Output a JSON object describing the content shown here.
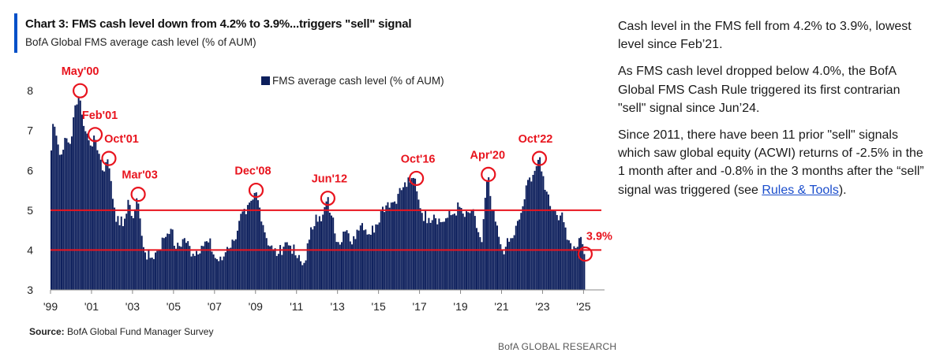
{
  "header": {
    "title": "Chart 3: FMS cash level down from 4.2% to 3.9%...triggers \"sell\" signal",
    "subtitle": "BofA Global FMS average cash level (% of AUM)"
  },
  "footer": {
    "source_label": "Source:",
    "source_text": " BofA Global Fund Manager Survey",
    "brand": "BofA GLOBAL RESEARCH"
  },
  "commentary": {
    "p1": "Cash level in the FMS fell from 4.2% to 3.9%, lowest level since Feb’21.",
    "p2": "As FMS cash level dropped below 4.0%, the BofA Global FMS Cash Rule triggered its first contrarian \"sell\" signal since Jun’24.",
    "p3_before": "Since 2011, there have been 11 prior \"sell\" signals which saw global equity (ACWI) returns of -2.5% in the 1 month after and -0.8% in the 3 months after the “sell” signal was triggered (see ",
    "p3_link": "Rules & Tools",
    "p3_after": ")."
  },
  "colors": {
    "bars": "#0d1f5c",
    "threshold": "#e8141e",
    "annotation": "#e8141e",
    "accent": "#0050c8"
  },
  "chart_data": {
    "type": "bar",
    "series": [
      {
        "name": "FMS average cash level (% of AUM)"
      }
    ],
    "x_start": 1999,
    "x_end": 2025.1,
    "ylim": [
      3,
      8.3
    ],
    "yticks": [
      "3",
      "4",
      "5",
      "6",
      "7",
      "8"
    ],
    "xticks": [
      {
        "label": "'99",
        "year": 1999
      },
      {
        "label": "'01",
        "year": 2001
      },
      {
        "label": "'03",
        "year": 2003
      },
      {
        "label": "'05",
        "year": 2005
      },
      {
        "label": "'07",
        "year": 2007
      },
      {
        "label": "'09",
        "year": 2009
      },
      {
        "label": "'11",
        "year": 2011
      },
      {
        "label": "'13",
        "year": 2013
      },
      {
        "label": "'15",
        "year": 2015
      },
      {
        "label": "'17",
        "year": 2017
      },
      {
        "label": "'19",
        "year": 2019
      },
      {
        "label": "'21",
        "year": 2021
      },
      {
        "label": "'23",
        "year": 2023
      },
      {
        "label": "'25",
        "year": 2025
      }
    ],
    "thresholds": [
      5.0,
      4.0
    ],
    "annotations": [
      {
        "label": "May'00",
        "year": 2000.37,
        "value": 8.0
      },
      {
        "label": "Feb'01",
        "year": 2001.1,
        "value": 6.9
      },
      {
        "label": "Oct'01",
        "year": 2001.77,
        "value": 6.3
      },
      {
        "label": "Mar'03",
        "year": 2003.2,
        "value": 5.4
      },
      {
        "label": "Dec'08",
        "year": 2008.95,
        "value": 5.5
      },
      {
        "label": "Jun'12",
        "year": 2012.45,
        "value": 5.3
      },
      {
        "label": "Oct'16",
        "year": 2016.77,
        "value": 5.8
      },
      {
        "label": "Apr'20",
        "year": 2020.28,
        "value": 5.9
      },
      {
        "label": "Oct'22",
        "year": 2022.77,
        "value": 6.3
      },
      {
        "label": "3.9%",
        "year": 2025.0,
        "value": 3.9
      }
    ],
    "anchors": [
      [
        1999.0,
        6.5
      ],
      [
        1999.1,
        7.3
      ],
      [
        1999.3,
        6.7
      ],
      [
        1999.5,
        6.4
      ],
      [
        1999.7,
        6.9
      ],
      [
        1999.9,
        6.6
      ],
      [
        2000.1,
        7.4
      ],
      [
        2000.3,
        7.7
      ],
      [
        2000.37,
        8.0
      ],
      [
        2000.5,
        7.4
      ],
      [
        2000.7,
        6.9
      ],
      [
        2000.9,
        6.6
      ],
      [
        2001.1,
        6.9
      ],
      [
        2001.3,
        6.5
      ],
      [
        2001.5,
        6.0
      ],
      [
        2001.77,
        6.3
      ],
      [
        2001.9,
        5.8
      ],
      [
        2002.1,
        5.0
      ],
      [
        2002.3,
        4.6
      ],
      [
        2002.6,
        4.8
      ],
      [
        2002.8,
        5.2
      ],
      [
        2003.0,
        4.8
      ],
      [
        2003.2,
        5.4
      ],
      [
        2003.4,
        4.4
      ],
      [
        2003.6,
        3.9
      ],
      [
        2003.9,
        3.8
      ],
      [
        2004.2,
        4.0
      ],
      [
        2004.5,
        4.3
      ],
      [
        2004.8,
        4.6
      ],
      [
        2005.1,
        4.0
      ],
      [
        2005.5,
        4.3
      ],
      [
        2005.9,
        3.9
      ],
      [
        2006.3,
        4.1
      ],
      [
        2006.7,
        4.2
      ],
      [
        2007.0,
        3.8
      ],
      [
        2007.3,
        3.7
      ],
      [
        2007.6,
        4.1
      ],
      [
        2007.9,
        4.2
      ],
      [
        2008.2,
        4.8
      ],
      [
        2008.5,
        4.9
      ],
      [
        2008.8,
        5.2
      ],
      [
        2008.95,
        5.5
      ],
      [
        2009.2,
        5.0
      ],
      [
        2009.5,
        4.3
      ],
      [
        2009.8,
        4.0
      ],
      [
        2010.1,
        3.9
      ],
      [
        2010.4,
        4.2
      ],
      [
        2010.7,
        4.1
      ],
      [
        2011.0,
        3.8
      ],
      [
        2011.3,
        3.6
      ],
      [
        2011.6,
        4.3
      ],
      [
        2011.9,
        4.9
      ],
      [
        2012.2,
        4.7
      ],
      [
        2012.45,
        5.3
      ],
      [
        2012.7,
        4.8
      ],
      [
        2013.0,
        4.2
      ],
      [
        2013.3,
        4.5
      ],
      [
        2013.6,
        4.2
      ],
      [
        2013.9,
        4.5
      ],
      [
        2014.2,
        4.7
      ],
      [
        2014.5,
        4.4
      ],
      [
        2014.8,
        4.6
      ],
      [
        2015.1,
        5.0
      ],
      [
        2015.4,
        5.2
      ],
      [
        2015.7,
        5.2
      ],
      [
        2015.9,
        5.4
      ],
      [
        2016.2,
        5.6
      ],
      [
        2016.5,
        5.7
      ],
      [
        2016.77,
        5.8
      ],
      [
        2016.9,
        5.3
      ],
      [
        2017.1,
        4.9
      ],
      [
        2017.4,
        4.8
      ],
      [
        2017.7,
        4.9
      ],
      [
        2018.0,
        4.7
      ],
      [
        2018.3,
        4.8
      ],
      [
        2018.6,
        4.9
      ],
      [
        2018.9,
        5.1
      ],
      [
        2019.2,
        4.8
      ],
      [
        2019.5,
        5.0
      ],
      [
        2019.8,
        4.5
      ],
      [
        2020.0,
        4.2
      ],
      [
        2020.28,
        5.9
      ],
      [
        2020.5,
        5.0
      ],
      [
        2020.8,
        4.4
      ],
      [
        2021.0,
        4.0
      ],
      [
        2021.2,
        4.1
      ],
      [
        2021.5,
        4.3
      ],
      [
        2021.8,
        4.7
      ],
      [
        2022.0,
        5.1
      ],
      [
        2022.3,
        5.8
      ],
      [
        2022.6,
        6.0
      ],
      [
        2022.77,
        6.3
      ],
      [
        2022.95,
        5.9
      ],
      [
        2023.2,
        5.4
      ],
      [
        2023.5,
        5.0
      ],
      [
        2023.8,
        4.9
      ],
      [
        2024.0,
        4.7
      ],
      [
        2024.3,
        4.2
      ],
      [
        2024.55,
        4.0
      ],
      [
        2024.75,
        4.3
      ],
      [
        2024.9,
        4.2
      ],
      [
        2025.0,
        3.9
      ]
    ]
  }
}
